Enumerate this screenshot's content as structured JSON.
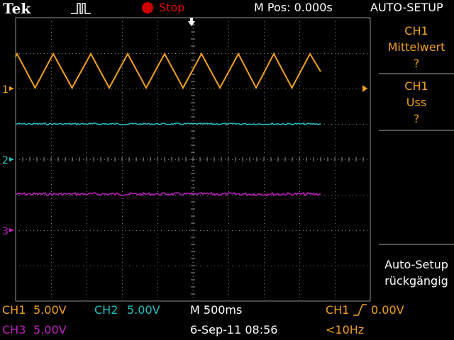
{
  "header": {
    "brand": "Tek",
    "run_state": "Stop",
    "m_pos": "M Pos: 0.000s",
    "menu_title": "AUTO-SETUP"
  },
  "markers": {
    "ch1": "1",
    "ch2": "2",
    "ch3": "3"
  },
  "side_menu": [
    {
      "line1": "CH1",
      "line2": "Mittelwert",
      "line3": "?"
    },
    {
      "line1": "CH1",
      "line2": "Uss",
      "line3": "?"
    },
    {
      "line1": "Auto-Setup",
      "line2": "rückgängig"
    }
  ],
  "status": {
    "ch1_label": "CH1",
    "ch1_scale": "5.00V",
    "ch2_label": "CH2",
    "ch2_scale": "5.00V",
    "timebase": "M 500ms",
    "trigger_source": "CH1",
    "trigger_slope_icon": "rising-edge-icon",
    "trigger_level": "0.00V",
    "ch3_label": "CH3",
    "ch3_scale": "5.00V",
    "datetime": "6-Sep-11 08:56",
    "frequency": "<10Hz"
  },
  "colors": {
    "ch1": "#f0a020",
    "ch2": "#20c0c0",
    "ch3": "#c020c0",
    "stop": "#e00000",
    "grid": "#808080"
  }
}
